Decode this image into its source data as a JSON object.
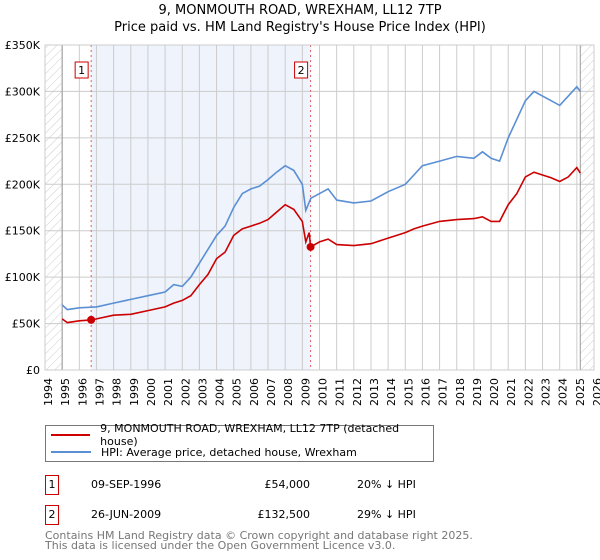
{
  "title": "9, MONMOUTH ROAD, WREXHAM, LL12 7TP",
  "subtitle": "Price paid vs. HM Land Registry's House Price Index (HPI)",
  "colors": {
    "property": "#cc0000",
    "hpi": "#5b8fd4",
    "shade": "#eef3fc",
    "grid": "#cccccc"
  },
  "chart_data": {
    "type": "line",
    "xlim": [
      1994,
      2026
    ],
    "ylim": [
      0,
      350000
    ],
    "xticks": [
      "1994",
      "1995",
      "1996",
      "1997",
      "1998",
      "1999",
      "2000",
      "2001",
      "2002",
      "2003",
      "2004",
      "2005",
      "2006",
      "2007",
      "2008",
      "2009",
      "2010",
      "2011",
      "2012",
      "2013",
      "2014",
      "2015",
      "2016",
      "2017",
      "2018",
      "2019",
      "2020",
      "2021",
      "2022",
      "2023",
      "2024",
      "2025",
      "2026"
    ],
    "yticks": [
      {
        "v": 0,
        "label": "£0"
      },
      {
        "v": 50000,
        "label": "£50K"
      },
      {
        "v": 100000,
        "label": "£100K"
      },
      {
        "v": 150000,
        "label": "£150K"
      },
      {
        "v": 200000,
        "label": "£200K"
      },
      {
        "v": 250000,
        "label": "£250K"
      },
      {
        "v": 300000,
        "label": "£300K"
      },
      {
        "v": 350000,
        "label": "£350K"
      }
    ],
    "grid": true,
    "data_range": [
      1995,
      2025.2
    ],
    "series": [
      {
        "name": "9, MONMOUTH ROAD, WREXHAM, LL12 7TP (detached house)",
        "color": "#cc0000",
        "x": [
          1995,
          1995.3,
          1996,
          1996.69,
          1997,
          1998,
          1999,
          2000,
          2001,
          2001.5,
          2002,
          2002.5,
          2003,
          2003.5,
          2004,
          2004.5,
          2005,
          2005.5,
          2006,
          2006.5,
          2007,
          2007.5,
          2008,
          2008.5,
          2009,
          2009.2,
          2009.4,
          2009.48,
          2010,
          2010.5,
          2011,
          2012,
          2013,
          2014,
          2015,
          2015.5,
          2016,
          2017,
          2018,
          2019,
          2019.5,
          2020,
          2020.5,
          2021,
          2021.5,
          2022,
          2022.5,
          2023,
          2023.5,
          2024,
          2024.5,
          2025,
          2025.2
        ],
        "y": [
          55000,
          51000,
          53000,
          54000,
          55000,
          59000,
          60000,
          64000,
          68000,
          72000,
          75000,
          80000,
          92000,
          103000,
          120000,
          127000,
          145000,
          152000,
          155000,
          158000,
          162000,
          170000,
          178000,
          173000,
          160000,
          138000,
          148000,
          132500,
          138000,
          141000,
          135000,
          134000,
          136000,
          142000,
          148000,
          152000,
          155000,
          160000,
          162000,
          163000,
          165000,
          160000,
          160000,
          178000,
          190000,
          208000,
          213000,
          210000,
          207000,
          203000,
          208000,
          218000,
          212000
        ]
      },
      {
        "name": "HPI: Average price, detached house, Wrexham",
        "color": "#5b8fd4",
        "x": [
          1995,
          1995.3,
          1996,
          1997,
          1998,
          1999,
          2000,
          2001,
          2001.5,
          2002,
          2002.5,
          2003,
          2003.5,
          2004,
          2004.5,
          2005,
          2005.5,
          2006,
          2006.5,
          2007,
          2007.5,
          2008,
          2008.5,
          2009,
          2009.2,
          2009.5,
          2010,
          2010.5,
          2011,
          2012,
          2013,
          2014,
          2015,
          2015.5,
          2016,
          2017,
          2018,
          2019,
          2019.5,
          2020,
          2020.5,
          2021,
          2021.5,
          2022,
          2022.5,
          2023,
          2023.5,
          2024,
          2024.5,
          2025,
          2025.2
        ],
        "y": [
          70000,
          65000,
          67000,
          68000,
          72000,
          76000,
          80000,
          84000,
          92000,
          90000,
          100000,
          115000,
          130000,
          145000,
          155000,
          175000,
          190000,
          195000,
          198000,
          205000,
          213000,
          220000,
          215000,
          200000,
          172000,
          185000,
          190000,
          195000,
          183000,
          180000,
          182000,
          192000,
          200000,
          210000,
          220000,
          225000,
          230000,
          228000,
          235000,
          228000,
          225000,
          250000,
          270000,
          290000,
          300000,
          295000,
          290000,
          285000,
          295000,
          305000,
          300000
        ]
      }
    ],
    "annotations": [
      {
        "label": "1",
        "x": 1996.69,
        "y": 54000
      },
      {
        "label": "2",
        "x": 2009.48,
        "y": 132500
      }
    ]
  },
  "legend": {
    "property": "9, MONMOUTH ROAD, WREXHAM, LL12 7TP (detached house)",
    "hpi": "HPI: Average price, detached house, Wrexham"
  },
  "sales": [
    {
      "num": "1",
      "date": "09-SEP-1996",
      "price": "£54,000",
      "hpi": "20% ↓ HPI"
    },
    {
      "num": "2",
      "date": "26-JUN-2009",
      "price": "£132,500",
      "hpi": "29% ↓ HPI"
    }
  ],
  "footer": {
    "line1": "Contains HM Land Registry data © Crown copyright and database right 2025.",
    "line2": "This data is licensed under the Open Government Licence v3.0."
  }
}
